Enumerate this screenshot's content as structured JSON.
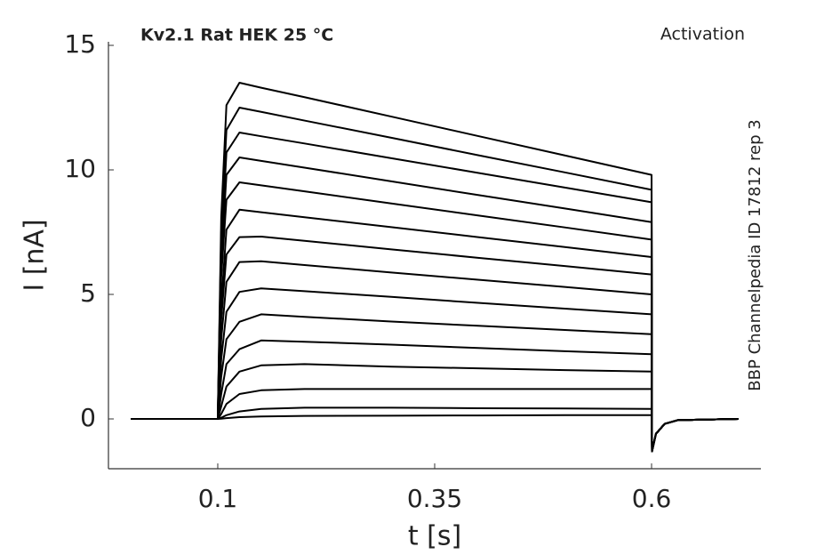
{
  "chart_data": {
    "type": "line",
    "title": "Kv2.1  Rat  HEK  25 °C",
    "subtitle": "Activation",
    "annotation": "BBP Channelpedia ID 17812 rep 3",
    "xlabel": "t [s]",
    "ylabel": "I [nA]",
    "x": [
      0,
      0.1,
      0.104,
      0.11,
      0.125,
      0.15,
      0.2,
      0.3,
      0.4,
      0.5,
      0.6,
      0.6005,
      0.605,
      0.615,
      0.63,
      0.7
    ],
    "series": [
      {
        "color": "#000000",
        "values": [
          0,
          0,
          8.1,
          12.6,
          13.5,
          13.3,
          12.92,
          12.14,
          11.36,
          10.58,
          9.8,
          -1.3,
          -0.6,
          -0.2,
          -0.05,
          0
        ]
      },
      {
        "color": "#000000",
        "values": [
          0,
          0,
          7.5,
          11.6,
          12.5,
          12.33,
          11.98,
          11.29,
          10.59,
          9.9,
          9.2,
          -1.3,
          -0.6,
          -0.2,
          -0.05,
          0
        ]
      },
      {
        "color": "#000000",
        "values": [
          0,
          0,
          6.9,
          10.7,
          11.5,
          11.35,
          11.06,
          10.47,
          9.88,
          9.29,
          8.7,
          -1.3,
          -0.6,
          -0.2,
          -0.05,
          0
        ]
      },
      {
        "color": "#000000",
        "values": [
          0,
          0,
          6.3,
          9.8,
          10.5,
          10.36,
          10.09,
          9.54,
          8.99,
          8.45,
          7.9,
          -1.3,
          -0.6,
          -0.2,
          -0.05,
          0
        ]
      },
      {
        "color": "#000000",
        "values": [
          0,
          0,
          5.7,
          8.8,
          9.5,
          9.38,
          9.14,
          8.65,
          8.17,
          7.69,
          7.2,
          -1.3,
          -0.6,
          -0.2,
          -0.05,
          0
        ]
      },
      {
        "color": "#000000",
        "values": [
          0,
          0,
          4.6,
          7.6,
          8.4,
          8.3,
          8.1,
          7.7,
          7.3,
          6.9,
          6.5,
          -1.3,
          -0.6,
          -0.2,
          -0.05,
          0
        ]
      },
      {
        "color": "#000000",
        "values": [
          0,
          0,
          4.0,
          6.6,
          7.3,
          7.32,
          7.15,
          6.81,
          6.47,
          6.14,
          5.8,
          -1.3,
          -0.6,
          -0.2,
          -0.05,
          0
        ]
      },
      {
        "color": "#000000",
        "values": [
          0,
          0,
          3.2,
          5.5,
          6.3,
          6.33,
          6.18,
          5.88,
          5.59,
          5.3,
          5.0,
          -1.3,
          -0.6,
          -0.2,
          -0.05,
          0
        ]
      },
      {
        "color": "#000000",
        "values": [
          0,
          0,
          2.4,
          4.3,
          5.1,
          5.24,
          5.13,
          4.9,
          4.66,
          4.43,
          4.2,
          -1.3,
          -0.6,
          -0.2,
          -0.05,
          0
        ]
      },
      {
        "color": "#000000",
        "values": [
          0,
          0,
          1.7,
          3.2,
          3.9,
          4.2,
          4.1,
          3.91,
          3.74,
          3.57,
          3.4,
          -1.3,
          -0.6,
          -0.2,
          -0.05,
          0
        ]
      },
      {
        "color": "#000000",
        "values": [
          0,
          0,
          1.0,
          2.2,
          2.8,
          3.15,
          3.1,
          2.98,
          2.85,
          2.72,
          2.6,
          -1.3,
          -0.6,
          -0.2,
          -0.05,
          0
        ]
      },
      {
        "color": "#000000",
        "values": [
          0,
          0,
          0.5,
          1.3,
          1.9,
          2.15,
          2.2,
          2.1,
          2.03,
          1.96,
          1.9,
          -1.3,
          -0.6,
          -0.2,
          -0.05,
          0
        ]
      },
      {
        "color": "#000000",
        "values": [
          0,
          0,
          0.2,
          0.6,
          1.0,
          1.15,
          1.2,
          1.2,
          1.2,
          1.2,
          1.2,
          -1.3,
          -0.6,
          -0.2,
          -0.05,
          0
        ]
      },
      {
        "color": "#000000",
        "values": [
          0,
          0,
          0.05,
          0.15,
          0.3,
          0.4,
          0.45,
          0.45,
          0.43,
          0.42,
          0.4,
          -1.3,
          -0.6,
          -0.2,
          -0.05,
          0
        ]
      },
      {
        "color": "#000000",
        "values": [
          0,
          0,
          0.01,
          0.03,
          0.07,
          0.1,
          0.12,
          0.13,
          0.14,
          0.15,
          0.15,
          -1.3,
          -0.6,
          -0.2,
          -0.05,
          0
        ]
      }
    ],
    "xlim": [
      -0.026,
      0.726
    ],
    "xticks": [
      0.1,
      0.35,
      0.6
    ],
    "ylim": [
      -2,
      15
    ],
    "yticks": [
      0,
      5,
      10,
      15
    ]
  }
}
